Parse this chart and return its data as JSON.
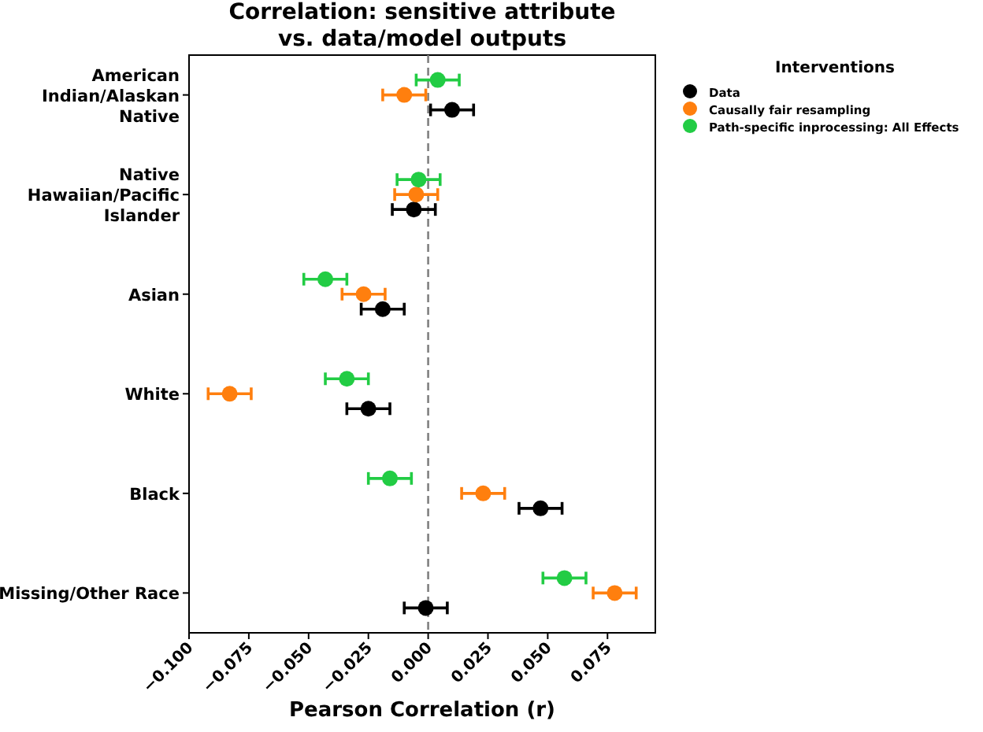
{
  "chart_data": {
    "type": "scatter",
    "orientation": "horizontal",
    "title": "Correlation: sensitive attribute\nvs. data/model outputs",
    "xlabel": "Pearson Correlation (r)",
    "legend_title": "Interventions",
    "legend": "top right",
    "marker": "circle",
    "grid": false,
    "categories": [
      "American Indian/Alaskan Native",
      "Native Hawaiian/Pacific Islander",
      "Asian",
      "White",
      "Black",
      "Missing/Other Race"
    ],
    "xlim": [
      -0.1,
      0.095
    ],
    "xticks": [
      {
        "value": -0.1,
        "label": "−0.100"
      },
      {
        "value": -0.075,
        "label": "−0.075"
      },
      {
        "value": -0.05,
        "label": "−0.050"
      },
      {
        "value": -0.025,
        "label": "−0.025"
      },
      {
        "value": 0,
        "label": "0.000"
      },
      {
        "value": 0.025,
        "label": "0.025"
      },
      {
        "value": 0.05,
        "label": "0.050"
      },
      {
        "value": 0.075,
        "label": "0.075"
      }
    ],
    "series": [
      {
        "name": "Data",
        "color": "#000000",
        "values": [
          0.01,
          -0.006,
          -0.019,
          -0.025,
          0.047,
          -0.001
        ],
        "errors": [
          0.009,
          0.009,
          0.009,
          0.009,
          0.009,
          0.009
        ]
      },
      {
        "name": "Causally fair resampling",
        "color": "#ff7f0e",
        "values": [
          -0.01,
          -0.005,
          -0.027,
          -0.083,
          0.023,
          0.078
        ],
        "errors": [
          0.009,
          0.009,
          0.009,
          0.009,
          0.009,
          0.009
        ]
      },
      {
        "name": "Path-specific inprocessing: All Effects",
        "color": "#22cc44",
        "values": [
          0.004,
          -0.004,
          -0.043,
          -0.034,
          -0.016,
          0.057
        ],
        "errors": [
          0.009,
          0.009,
          0.009,
          0.009,
          0.009,
          0.009
        ]
      }
    ],
    "ref_lines": [
      {
        "axis": "x",
        "value": 0,
        "color": "#808080",
        "line_style": "dashed"
      }
    ]
  }
}
